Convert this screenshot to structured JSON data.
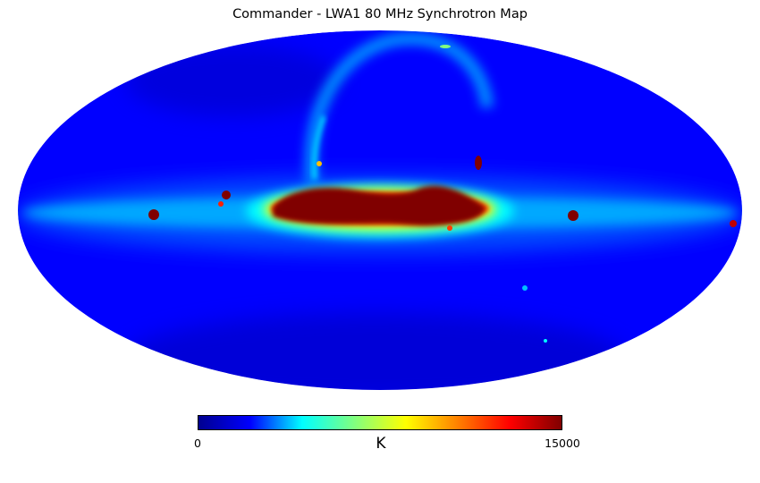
{
  "title": "Commander - LWA1 80 MHz Synchrotron Map",
  "map": {
    "projection": "mollweide",
    "colormap": "jet",
    "background_color": "#0000ff",
    "plane_colors": [
      "#00ffff",
      "#ffff00",
      "#ff4000",
      "#800000"
    ]
  },
  "colorbar": {
    "min_label": "0",
    "max_label": "15000",
    "unit": "K",
    "range": [
      0,
      15000
    ],
    "gradient": [
      "#00008f",
      "#0000ff",
      "#00ffff",
      "#80ff80",
      "#ffff00",
      "#ff8000",
      "#ff0000",
      "#800000"
    ]
  }
}
